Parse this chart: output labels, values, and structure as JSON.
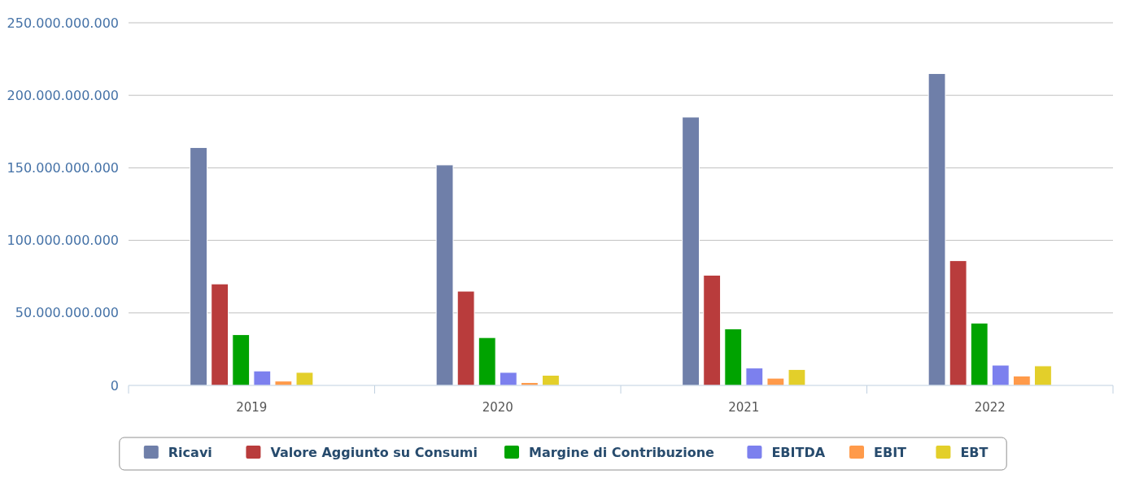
{
  "chart_data": {
    "type": "bar",
    "categories": [
      "2019",
      "2020",
      "2021",
      "2022"
    ],
    "series": [
      {
        "name": "Ricavi",
        "color": "#6f7fa9",
        "values": [
          164000000000,
          152000000000,
          185000000000,
          215000000000
        ]
      },
      {
        "name": "Valore Aggiunto su Consumi",
        "color": "#b93c3c",
        "values": [
          70000000000,
          65000000000,
          76000000000,
          86000000000
        ]
      },
      {
        "name": "Margine di Contribuzione",
        "color": "#00a300",
        "values": [
          35000000000,
          33000000000,
          39000000000,
          43000000000
        ]
      },
      {
        "name": "EBITDA",
        "color": "#7c80ee",
        "values": [
          10000000000,
          9000000000,
          12000000000,
          14000000000
        ]
      },
      {
        "name": "EBIT",
        "color": "#ff9a4a",
        "values": [
          3000000000,
          2000000000,
          5000000000,
          6500000000
        ]
      },
      {
        "name": "EBT",
        "color": "#e3cf2a",
        "values": [
          9000000000,
          7000000000,
          11000000000,
          13500000000
        ]
      }
    ],
    "ylim": [
      0,
      250000000000
    ],
    "yticks": [
      0,
      {
        "value": 50000000000,
        "label": "50.000.000.000"
      },
      {
        "value": 100000000000,
        "label": "100.000.000.000"
      },
      {
        "value": 150000000000,
        "label": "150.000.000.000"
      },
      {
        "value": 200000000000,
        "label": "200.000.000.000"
      },
      {
        "value": 250000000000,
        "label": "250.000.000.000"
      }
    ],
    "grid": "y",
    "legend": "bottom"
  }
}
